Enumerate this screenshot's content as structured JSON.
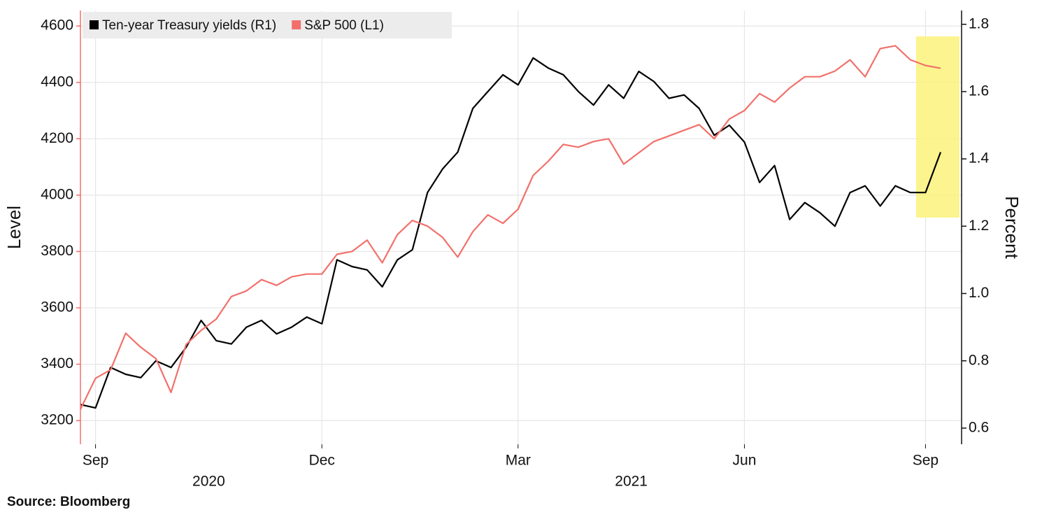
{
  "chart_data": {
    "type": "line",
    "ylabel": "Level",
    "y2label": "Percent",
    "source": "Source: Bloomberg",
    "categories": [
      null,
      "Sep",
      null,
      null,
      null,
      null,
      null,
      null,
      null,
      null,
      null,
      null,
      null,
      null,
      null,
      null,
      "Dec",
      null,
      null,
      null,
      null,
      null,
      null,
      null,
      null,
      null,
      null,
      null,
      null,
      "Mar",
      null,
      null,
      null,
      null,
      null,
      null,
      null,
      null,
      null,
      null,
      null,
      null,
      null,
      null,
      "Jun",
      null,
      null,
      null,
      null,
      null,
      null,
      null,
      null,
      null,
      null,
      null,
      "Sep",
      null
    ],
    "year_labels": [
      "2020",
      "2021"
    ],
    "series": [
      {
        "name": "Ten-year Treasury yields (R1)",
        "color": "#000000",
        "axis": "y2",
        "values": [
          0.67,
          0.66,
          0.78,
          0.76,
          0.75,
          0.8,
          0.78,
          0.84,
          0.92,
          0.86,
          0.85,
          0.9,
          0.92,
          0.88,
          0.9,
          0.93,
          0.91,
          1.1,
          1.08,
          1.07,
          1.02,
          1.1,
          1.13,
          1.3,
          1.37,
          1.42,
          1.55,
          1.6,
          1.65,
          1.62,
          1.7,
          1.67,
          1.65,
          1.6,
          1.56,
          1.62,
          1.58,
          1.66,
          1.63,
          1.58,
          1.59,
          1.55,
          1.47,
          1.5,
          1.45,
          1.33,
          1.38,
          1.22,
          1.27,
          1.24,
          1.2,
          1.3,
          1.32,
          1.26,
          1.32,
          1.3,
          1.3,
          1.42
        ]
      },
      {
        "name": "S&P 500 (L1)",
        "color": "#f2706b",
        "values": [
          3240,
          3350,
          3380,
          3510,
          3460,
          3420,
          3300,
          3470,
          3520,
          3560,
          3640,
          3660,
          3700,
          3680,
          3710,
          3720,
          3720,
          3790,
          3800,
          3840,
          3760,
          3860,
          3910,
          3890,
          3850,
          3780,
          3870,
          3930,
          3900,
          3950,
          4070,
          4120,
          4180,
          4170,
          4190,
          4200,
          4110,
          4150,
          4190,
          4210,
          4230,
          4250,
          4200,
          4270,
          4300,
          4360,
          4330,
          4380,
          4420,
          4420,
          4440,
          4480,
          4420,
          4520,
          4530,
          4480,
          4460,
          4450
        ]
      }
    ],
    "ylim": [
      3116,
      4655
    ],
    "yticks": [
      3200,
      3400,
      3600,
      3800,
      4000,
      4200,
      4400,
      4600
    ],
    "y2lim": [
      0.552,
      1.841
    ],
    "y2ticks": [
      0.6,
      0.8,
      {
        "value": 1.0,
        "label": "1.0"
      },
      1.2,
      1.4,
      1.6,
      1.8
    ],
    "grid": true
  }
}
